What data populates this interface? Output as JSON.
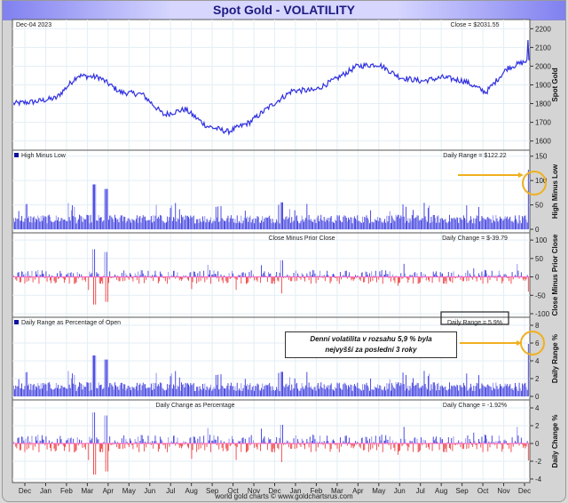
{
  "title": "Spot Gold - VOLATILITY",
  "date_label": "Dec-04  2023",
  "footer": "world gold charts © www.goldchartsrus.com",
  "callout": {
    "line1": "Denní volatilita v rozsahu 5,9 % byla",
    "line2": "nejvyšší za poslední 3 roky"
  },
  "colors": {
    "price_line": "#3030e0",
    "bar_blue": "#3b3bdc",
    "bar_blue_light": "#8c8cf0",
    "bar_red": "#f04040",
    "zero_line": "#ff60c0",
    "annotation": "#f0b020"
  },
  "chart_data": [
    {
      "type": "line",
      "name": "Spot Gold",
      "ylabel": "Spot Gold",
      "ylim": [
        1570,
        2230
      ],
      "yticks": [
        1600,
        1700,
        1800,
        1900,
        2000,
        2100,
        2200
      ],
      "value_label": "Close = $2031.55",
      "x": [
        "Dec-21",
        "Jan-22",
        "Feb-22",
        "Mar-22",
        "Apr-22",
        "May-22",
        "Jun-22",
        "Jul-22",
        "Aug-22",
        "Sep-22",
        "Oct-22",
        "Nov-22",
        "Dec-22",
        "Jan-23",
        "Feb-23",
        "Mar-23",
        "Apr-23",
        "May-23",
        "Jun-23",
        "Jul-23",
        "Aug-23",
        "Sep-23",
        "Oct-23",
        "Nov-23",
        "Dec-23"
      ],
      "values": [
        1800,
        1810,
        1830,
        1950,
        1940,
        1860,
        1850,
        1740,
        1770,
        1680,
        1650,
        1700,
        1790,
        1870,
        1870,
        1930,
        2000,
        2010,
        1940,
        1920,
        1940,
        1920,
        1860,
        1990,
        2031.55
      ]
    },
    {
      "type": "bar",
      "name": "High Minus Low",
      "ylabel": "High Minus Low",
      "ylim": [
        0,
        155
      ],
      "yticks": [
        0,
        50,
        100,
        150
      ],
      "value_label": "Daily Range = $122.22",
      "latest": 122.22,
      "typical": 20,
      "max_prior": 92
    },
    {
      "type": "bar",
      "name": "Close Minus Prior Close",
      "ylabel": "Close Minus Prior Close",
      "ylim": [
        -100,
        110
      ],
      "yticks": [
        -100,
        -50,
        0,
        50,
        100
      ],
      "value_label": "Daily Change = $-39.79",
      "latest": -39.79
    },
    {
      "type": "bar",
      "name": "Daily Range as Percentage of Open",
      "ylabel": "Daily Range %",
      "ylim": [
        0,
        8.5
      ],
      "yticks": [
        0,
        2,
        4,
        6,
        8
      ],
      "value_label": "Daily Range = 5.9%",
      "latest": 5.9
    },
    {
      "type": "bar",
      "name": "Daily Change as Percentage",
      "ylabel": "Daily Change %",
      "ylim": [
        -4,
        4.5
      ],
      "yticks": [
        -4,
        -2,
        0,
        2,
        4
      ],
      "value_label": "Daily Change = -1.92%",
      "latest": -1.92
    }
  ],
  "x_axis_labels": [
    "Dec",
    "Jan",
    "Feb",
    "Mar",
    "Apr",
    "May",
    "Jun",
    "Jul",
    "Aug",
    "Sep",
    "Oct",
    "Nov",
    "Dec",
    "Jan",
    "Feb",
    "Mar",
    "Apr",
    "May",
    "Jun",
    "Jul",
    "Aug",
    "Sep",
    "Oct",
    "Nov",
    "Dec"
  ]
}
